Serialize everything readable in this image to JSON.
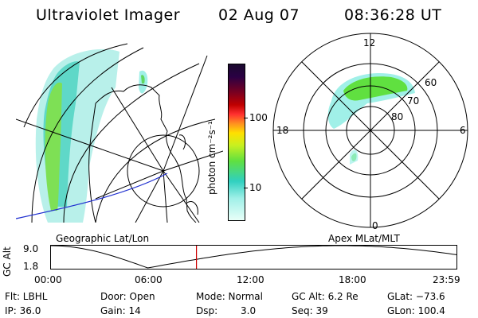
{
  "header": {
    "instrument": "Ultraviolet Imager",
    "date": "02 Aug 07",
    "time": "08:36:28 UT"
  },
  "left_panel": {
    "caption": "Geographic Lat/Lon"
  },
  "right_panel": {
    "caption": "Apex MLat/MLT",
    "mlt_labels": {
      "top": "12",
      "left": "18",
      "right": "6",
      "bottom": "0"
    },
    "mlat_labels": [
      "60",
      "70",
      "80"
    ]
  },
  "colorbar": {
    "unit_label": "photon cm⁻²s⁻¹",
    "ticks": [
      "100",
      "10"
    ],
    "colors": [
      "#1a0a2e",
      "#2a0044",
      "#7a0020",
      "#c00000",
      "#ff3030",
      "#ff9020",
      "#ffe000",
      "#c8f020",
      "#60e040",
      "#30d0c0",
      "#a0f0e8",
      "#e8fff8"
    ]
  },
  "altitude_strip": {
    "axis_label": "GC Alt",
    "y_ticks": [
      "9.0",
      "1.8"
    ],
    "x_ticks": [
      "00:00",
      "06:00",
      "12:00",
      "18:00",
      "23:59"
    ],
    "current_time_fraction": 0.36,
    "marker_color": "#cc0000"
  },
  "info": {
    "flt": "Flt: LBHL",
    "ip": "IP: 36.0",
    "door": "Door: Open",
    "gain": "Gain: 14",
    "mode": "Mode: Normal",
    "dsp_label": "Dsp:",
    "dsp_value": "3.0",
    "gc_alt": "GC Alt: 6.2 Re",
    "seq": "Seq: 39",
    "glat": "GLat: −73.6",
    "glon": "GLon: 100.4"
  }
}
